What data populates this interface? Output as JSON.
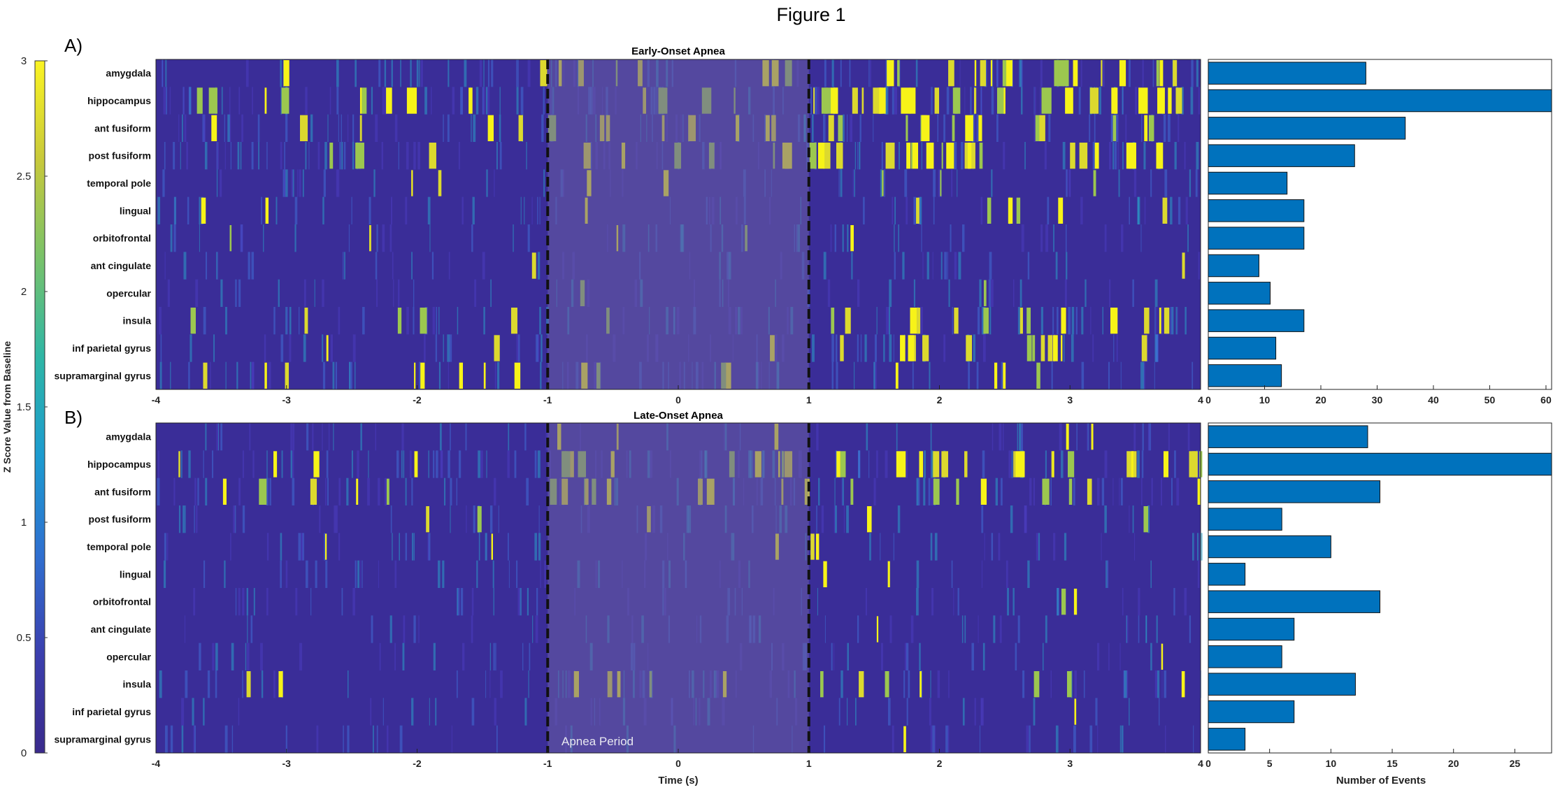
{
  "figure_title": "Figure 1",
  "colorbar": {
    "label": "Z Score Value from Baseline",
    "ticks": [
      "3",
      "2.5",
      "2",
      "1.5",
      "1",
      "0.5",
      "0"
    ],
    "range": [
      0,
      3
    ],
    "colors": [
      "#3a2a8c",
      "#3b3fae",
      "#2f6fd0",
      "#1c9bd0",
      "#2eb6a6",
      "#78c26a",
      "#c8c93b",
      "#fbf423"
    ]
  },
  "colors": {
    "background": "#3a2d98",
    "bar_fill": "#0072bd",
    "apnea_shade": "#6a5fa6",
    "hot": "#f7f318"
  },
  "apnea_label": "Apnea Period",
  "chart_data": [
    {
      "type": "heatmap",
      "panel_label": "A)",
      "title": "Early-Onset Apnea",
      "rows": [
        "amygdala",
        "hippocampus",
        "ant fusiform",
        "post fusiform",
        "temporal pole",
        "lingual",
        "orbitofrontal",
        "ant cingulate",
        "opercular",
        "insula",
        "inf parietal gyrus",
        "supramarginal gyrus"
      ],
      "xlim": [
        -4,
        4
      ],
      "xticks": [
        "-4",
        "-3",
        "-2",
        "-1",
        "0",
        "1",
        "2",
        "3",
        "4"
      ],
      "xlabel": "",
      "apnea_window": [
        -1,
        1
      ],
      "activity": [
        0.6,
        0.9,
        0.6,
        0.7,
        0.15,
        0.2,
        0.1,
        0.05,
        0.05,
        0.45,
        0.35,
        0.35
      ]
    },
    {
      "type": "bar",
      "orientation": "horizontal",
      "categories": [
        "amygdala",
        "hippocampus",
        "ant fusiform",
        "post fusiform",
        "temporal pole",
        "lingual",
        "orbitofrontal",
        "ant cingulate",
        "opercular",
        "insula",
        "inf parietal gyrus",
        "supramarginal gyrus"
      ],
      "values": [
        28,
        61,
        35,
        26,
        14,
        17,
        17,
        9,
        11,
        17,
        12,
        13
      ],
      "xlim": [
        0,
        61
      ],
      "xticks": [
        "0",
        "10",
        "20",
        "30",
        "40",
        "50",
        "60"
      ],
      "xlabel": ""
    },
    {
      "type": "heatmap",
      "panel_label": "B)",
      "title": "Late-Onset Apnea",
      "rows": [
        "amygdala",
        "hippocampus",
        "ant fusiform",
        "post fusiform",
        "temporal pole",
        "lingual",
        "orbitofrontal",
        "ant cingulate",
        "opercular",
        "insula",
        "inf parietal gyrus",
        "supramarginal gyrus"
      ],
      "xlim": [
        -4,
        4
      ],
      "xticks": [
        "-4",
        "-3",
        "-2",
        "-1",
        "0",
        "1",
        "2",
        "3",
        "4"
      ],
      "xlabel": "Time (s)",
      "apnea_window": [
        -1,
        1
      ],
      "activity": [
        0.1,
        0.75,
        0.5,
        0.1,
        0.1,
        0.05,
        0.05,
        0.02,
        0.03,
        0.3,
        0.02,
        0.02
      ]
    },
    {
      "type": "bar",
      "orientation": "horizontal",
      "categories": [
        "amygdala",
        "hippocampus",
        "ant fusiform",
        "post fusiform",
        "temporal pole",
        "lingual",
        "orbitofrontal",
        "ant cingulate",
        "opercular",
        "insula",
        "inf parietal gyrus",
        "supramarginal gyrus"
      ],
      "values": [
        13,
        28,
        14,
        6,
        10,
        3,
        14,
        7,
        6,
        12,
        7,
        3
      ],
      "xlim": [
        0,
        28
      ],
      "xticks": [
        "0",
        "5",
        "10",
        "15",
        "20",
        "25"
      ],
      "xlabel": "Number of Events"
    }
  ]
}
